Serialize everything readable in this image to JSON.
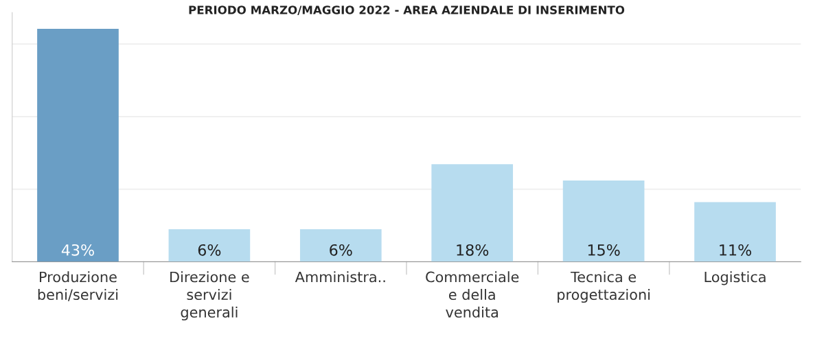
{
  "chart_data": {
    "type": "bar",
    "title": "PERIODO MARZO/MAGGIO 2022 - AREA AZIENDALE DI INSERIMENTO",
    "categories": [
      "Produzione\nbeni/servizi",
      "Direzione e\nservizi\ngenerali",
      "Amministra..",
      "Commerciale\ne della\nvendita",
      "Tecnica e\nprogettazioni",
      "Logistica"
    ],
    "values": [
      43,
      6,
      6,
      18,
      15,
      11
    ],
    "value_labels": [
      "43%",
      "6%",
      "6%",
      "18%",
      "15%",
      "11%"
    ],
    "colors": [
      "#6a9ec5",
      "#b7dcef",
      "#b7dcef",
      "#b7dcef",
      "#b7dcef",
      "#b7dcef"
    ],
    "ylim": [
      0,
      46
    ],
    "yticks": [
      {
        "value": 13.4,
        "label": null
      },
      {
        "value": 26.8,
        "label": null
      },
      {
        "value": 40.2,
        "label": null
      }
    ],
    "grid": "y"
  }
}
